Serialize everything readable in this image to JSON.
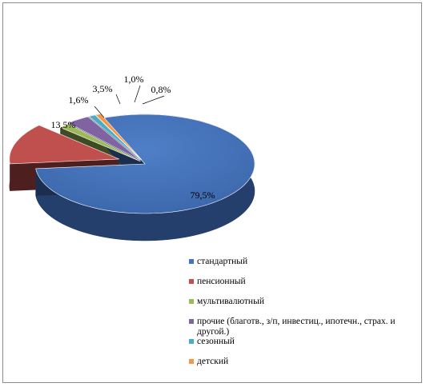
{
  "chart_data": {
    "type": "pie",
    "style": "3d-exploded",
    "categories": [
      "стандартный",
      "пенсионный",
      "мультивалютный",
      "прочие (благотв., з/п, инвестиц., ипотечн., страх. и другой.)",
      "сезонный",
      "детский"
    ],
    "values": [
      79.5,
      13.5,
      1.6,
      3.5,
      1.0,
      0.8
    ],
    "labels": [
      "79,5%",
      "13,5%",
      "1,6%",
      "3,5%",
      "1,0%",
      "0,8%"
    ],
    "colors": [
      "#4472C4",
      "#C0504D",
      "#9BBB59",
      "#8064A2",
      "#4BACC6",
      "#F79646"
    ],
    "legend_position": "bottom-right"
  }
}
